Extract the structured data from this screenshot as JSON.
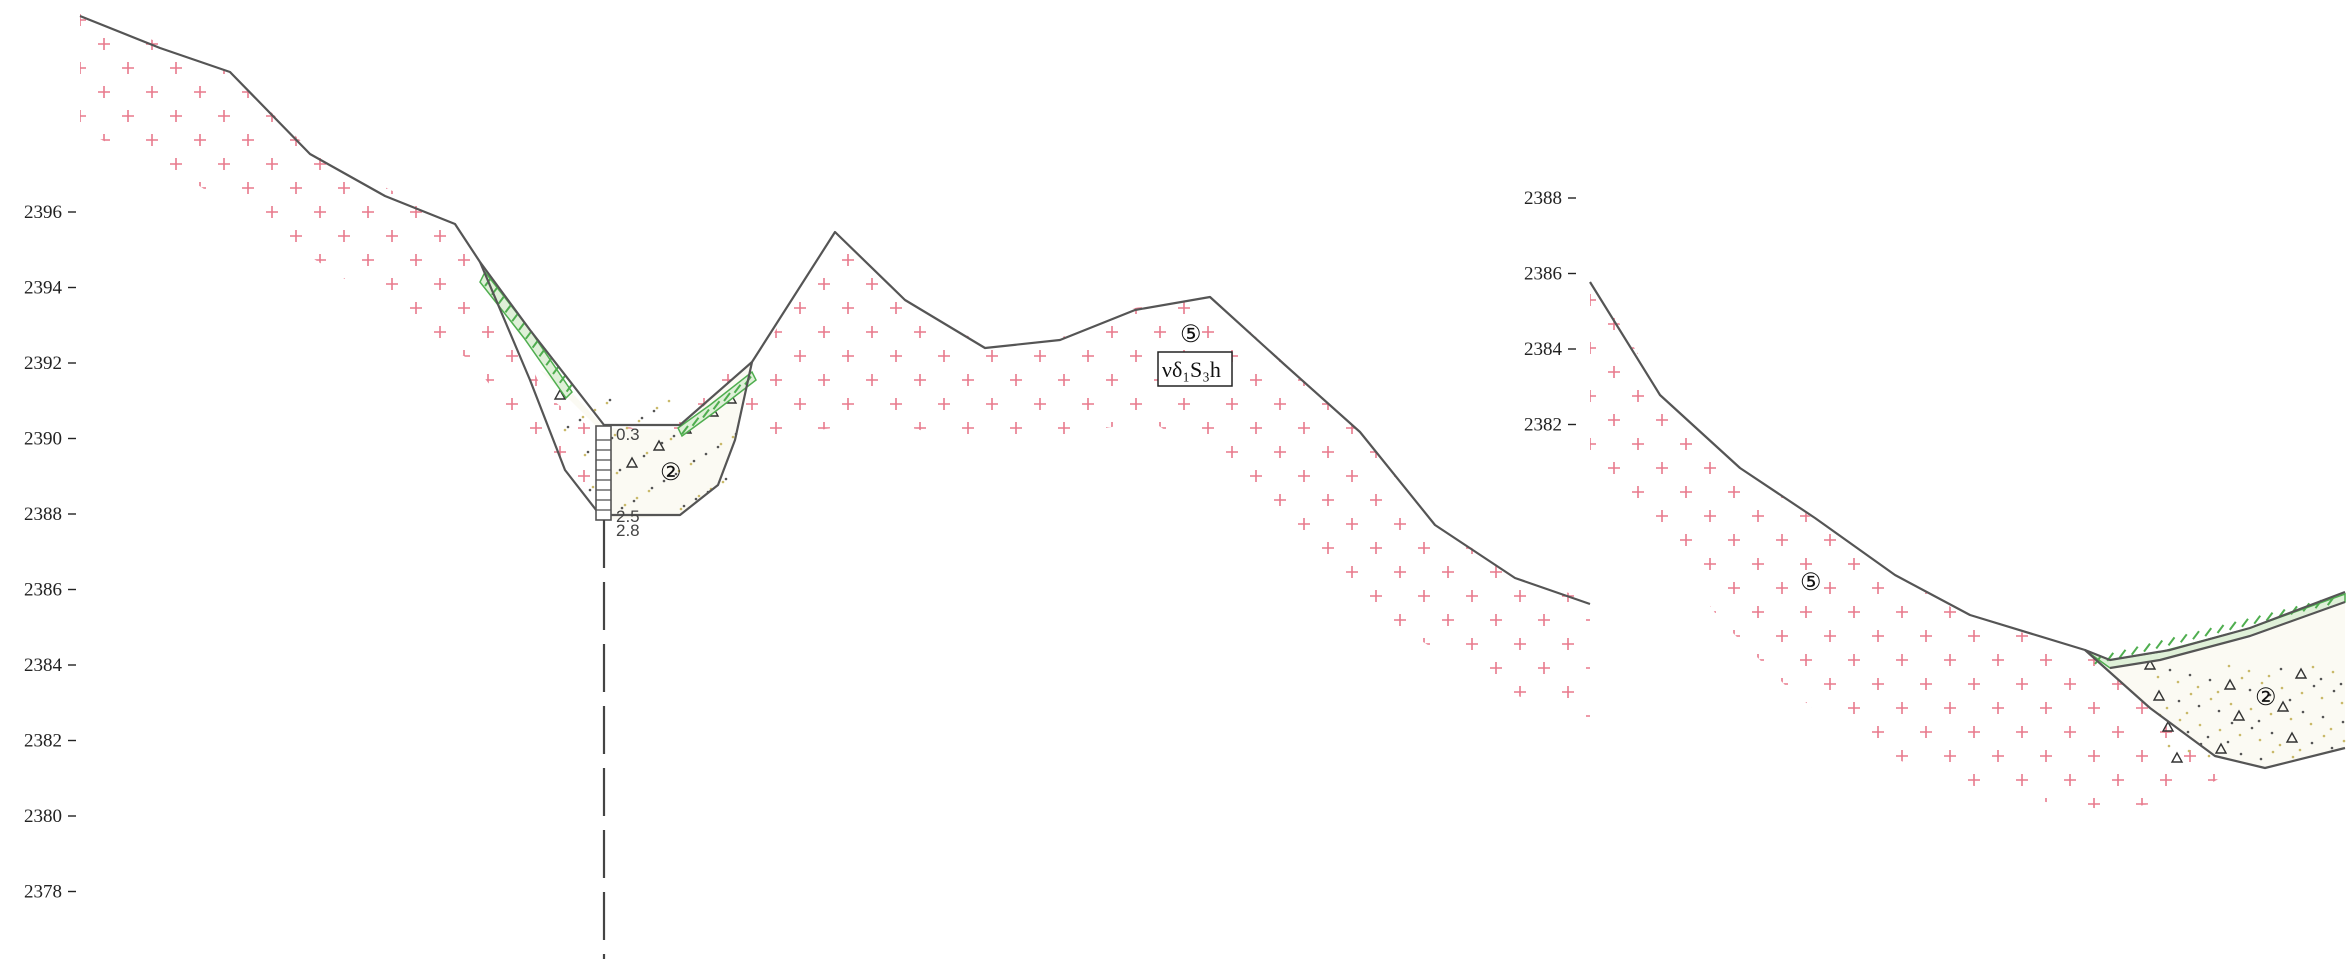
{
  "left_section": {
    "axis_ticks": [
      "2396",
      "2394",
      "2392",
      "2390",
      "2388",
      "2386",
      "2384",
      "2382",
      "2380",
      "2378"
    ],
    "layer_labels": [
      {
        "id": "2",
        "symbol": "②"
      },
      {
        "id": "5",
        "symbol": "⑤"
      }
    ],
    "formation_label": "νδ₁S₃h",
    "borehole": {
      "depths": [
        "0.3",
        "2.5",
        "2.8"
      ]
    }
  },
  "right_section": {
    "axis_ticks": [
      "2388",
      "2386",
      "2384",
      "2382"
    ],
    "layer_labels": [
      {
        "id": "5",
        "symbol": "⑤"
      },
      {
        "id": "2",
        "symbol": "②"
      }
    ]
  },
  "colors": {
    "bedrock_cross": "#e8798c",
    "ground_line": "#555555",
    "topsoil_hatch": "#4fae4f",
    "gravel_dot": "#c9b96a"
  }
}
